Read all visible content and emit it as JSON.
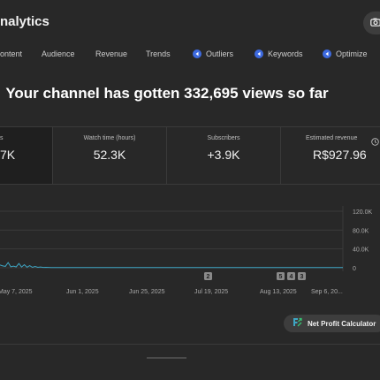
{
  "app": {
    "title": "nalytics"
  },
  "tabs": [
    {
      "label": "ontent",
      "icon": ""
    },
    {
      "label": "Audience",
      "icon": ""
    },
    {
      "label": "Revenue",
      "icon": ""
    },
    {
      "label": "Trends",
      "icon": ""
    },
    {
      "label": "Outliers",
      "icon": "plugin-icon"
    },
    {
      "label": "Keywords",
      "icon": "plugin-icon"
    },
    {
      "label": "Optimize",
      "icon": "plugin-icon"
    }
  ],
  "headline": "Your channel has gotten 332,695 views so far",
  "cards": [
    {
      "label": "s",
      "value": "7K"
    },
    {
      "label": "Watch time (hours)",
      "value": "52.3K"
    },
    {
      "label": "Subscribers",
      "value": "+3.9K"
    },
    {
      "label": "Estimated revenue",
      "value": "R$927.96",
      "info_icon": "info-icon"
    }
  ],
  "chart_data": {
    "type": "line",
    "y_ticks": [
      "120.0K",
      "80.0K",
      "40.0K",
      "0"
    ],
    "x_ticks": [
      "May 7, 2025",
      "Jun 1, 2025",
      "Jun 25, 2025",
      "Jul 19, 2025",
      "Aug 13, 2025",
      "Sep 6, 20..."
    ],
    "ylim": [
      0,
      120000
    ],
    "series": [
      {
        "color": "#3ea6c4",
        "values": [
          6000,
          4000,
          3000,
          11000,
          2000,
          3500,
          1800,
          9000,
          1500,
          6500,
          1200,
          4500,
          1000,
          2800,
          900,
          1600,
          800,
          1000,
          700,
          600,
          500,
          500,
          500,
          400,
          400,
          400,
          400,
          400,
          400,
          350,
          350,
          350,
          350,
          350,
          350,
          350,
          350,
          350,
          350,
          350,
          350,
          350,
          350,
          350,
          350,
          350,
          350,
          350,
          350,
          350,
          300,
          300,
          300,
          300,
          300,
          300,
          300,
          300,
          300,
          300,
          300,
          300,
          300,
          300,
          300,
          300,
          300,
          300,
          300,
          300,
          300,
          300,
          300,
          300,
          300,
          300,
          300,
          300,
          300,
          300,
          300,
          300,
          300,
          300,
          300,
          300,
          300,
          300,
          300,
          300,
          300,
          300,
          300,
          300,
          300,
          300,
          300,
          300,
          300,
          300,
          300,
          300,
          300,
          300,
          300,
          300,
          300,
          300,
          300,
          300,
          300,
          300,
          300,
          300,
          300,
          300,
          300,
          300,
          300,
          300,
          300,
          300,
          300,
          300,
          300,
          300,
          300,
          300
        ]
      }
    ],
    "markers": [
      "2",
      "5",
      "4",
      "3"
    ],
    "grid": true
  },
  "calculator": {
    "label": "Net Profit Calculator",
    "icon": "profit-calc-icon"
  }
}
